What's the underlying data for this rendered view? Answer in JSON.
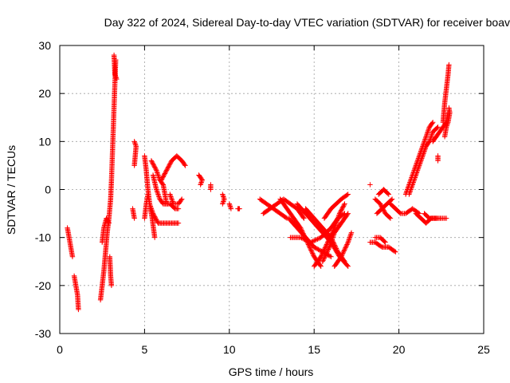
{
  "chart_data": {
    "type": "scatter",
    "title": "Day 322 of 2024, Sidereal Day-to-day VTEC variation (SDTVAR) for receiver boav",
    "xlabel": "GPS time / hours",
    "ylabel": "SDTVAR / TECUs",
    "xlim": [
      0,
      25
    ],
    "ylim": [
      -30,
      30
    ],
    "xticks": [
      0,
      5,
      10,
      15,
      20,
      25
    ],
    "yticks": [
      -30,
      -20,
      -10,
      0,
      10,
      20,
      30
    ],
    "grid": true,
    "marker": "+",
    "color": "#ff0000",
    "series": [
      {
        "name": "SDTVAR",
        "segments": [
          [
            [
              0.45,
              -8
            ],
            [
              0.55,
              -10
            ],
            [
              0.65,
              -12
            ],
            [
              0.75,
              -14
            ]
          ],
          [
            [
              0.85,
              -18
            ],
            [
              0.95,
              -20
            ],
            [
              1.05,
              -22
            ],
            [
              1.1,
              -25
            ]
          ],
          [
            [
              2.4,
              -23
            ],
            [
              2.5,
              -20
            ],
            [
              2.6,
              -17
            ],
            [
              2.7,
              -13
            ],
            [
              2.8,
              -9
            ],
            [
              2.9,
              -6
            ],
            [
              3.0,
              -2
            ],
            [
              3.05,
              2
            ],
            [
              3.1,
              7
            ],
            [
              3.15,
              12
            ],
            [
              3.2,
              17
            ],
            [
              3.25,
              22
            ],
            [
              3.3,
              27
            ]
          ],
          [
            [
              2.5,
              -11
            ],
            [
              2.6,
              -8
            ],
            [
              2.75,
              -6
            ],
            [
              2.9,
              -7
            ]
          ],
          [
            [
              2.95,
              -14
            ],
            [
              3.0,
              -18
            ],
            [
              3.05,
              -20
            ]
          ],
          [
            [
              3.2,
              28
            ],
            [
              3.25,
              24
            ],
            [
              3.35,
              23
            ]
          ],
          [
            [
              4.3,
              -4
            ],
            [
              4.4,
              -6
            ]
          ],
          [
            [
              4.4,
              10
            ],
            [
              4.5,
              9
            ],
            [
              4.4,
              5
            ]
          ],
          [
            [
              5.0,
              7
            ],
            [
              5.1,
              4
            ],
            [
              5.2,
              0
            ],
            [
              5.3,
              -3
            ],
            [
              5.45,
              -6
            ],
            [
              5.6,
              -10
            ]
          ],
          [
            [
              5.0,
              -6
            ],
            [
              5.1,
              -3
            ],
            [
              5.2,
              -1
            ],
            [
              5.3,
              -3
            ],
            [
              5.5,
              -5
            ],
            [
              5.8,
              -7
            ],
            [
              6.2,
              -7
            ],
            [
              6.6,
              -7
            ],
            [
              7.0,
              -7
            ]
          ],
          [
            [
              5.4,
              6
            ],
            [
              5.7,
              4
            ],
            [
              5.9,
              2
            ],
            [
              6.1,
              1
            ],
            [
              6.2,
              -1
            ],
            [
              6.3,
              -3
            ]
          ],
          [
            [
              5.5,
              3
            ],
            [
              5.7,
              0
            ],
            [
              5.9,
              -2
            ],
            [
              6.1,
              -3
            ],
            [
              6.5,
              -3
            ],
            [
              6.8,
              -4
            ],
            [
              7.0,
              -4
            ]
          ],
          [
            [
              6.0,
              2
            ],
            [
              6.3,
              4
            ],
            [
              6.6,
              6
            ],
            [
              6.9,
              7
            ],
            [
              7.2,
              6
            ],
            [
              7.4,
              5
            ]
          ],
          [
            [
              6.5,
              -1
            ],
            [
              6.7,
              -3
            ],
            [
              7.0,
              -3
            ],
            [
              7.2,
              -2
            ]
          ],
          [
            [
              8.2,
              3
            ],
            [
              8.4,
              2
            ],
            [
              8.3,
              1
            ]
          ],
          [
            [
              8.9,
              1
            ],
            [
              8.9,
              0
            ]
          ],
          [
            [
              9.6,
              -1
            ],
            [
              9.7,
              -2
            ],
            [
              9.6,
              -3
            ]
          ],
          [
            [
              10.0,
              -3
            ],
            [
              10.1,
              -4
            ]
          ],
          [
            [
              10.5,
              -4
            ],
            [
              10.6,
              -4
            ]
          ],
          [
            [
              11.8,
              -2
            ],
            [
              12.2,
              -3
            ],
            [
              12.6,
              -4
            ],
            [
              13.0,
              -5
            ],
            [
              13.4,
              -6
            ]
          ],
          [
            [
              12.0,
              -5
            ],
            [
              12.4,
              -4
            ],
            [
              12.8,
              -3
            ],
            [
              13.2,
              -2
            ],
            [
              13.6,
              -3
            ],
            [
              14.0,
              -4
            ],
            [
              14.4,
              -6
            ]
          ],
          [
            [
              13.0,
              -2
            ],
            [
              13.4,
              -4
            ],
            [
              13.8,
              -6
            ],
            [
              14.2,
              -8
            ],
            [
              14.6,
              -11
            ],
            [
              15.0,
              -14
            ],
            [
              15.4,
              -16
            ]
          ],
          [
            [
              13.5,
              -6
            ],
            [
              14.0,
              -8
            ],
            [
              14.5,
              -10
            ],
            [
              15.0,
              -12
            ],
            [
              15.5,
              -13
            ],
            [
              16.0,
              -14
            ]
          ],
          [
            [
              13.6,
              -10
            ],
            [
              14.2,
              -10
            ],
            [
              14.8,
              -11
            ],
            [
              15.4,
              -10
            ],
            [
              16.0,
              -8
            ],
            [
              16.4,
              -6
            ],
            [
              16.8,
              -5
            ]
          ],
          [
            [
              14.0,
              -3
            ],
            [
              14.5,
              -5
            ],
            [
              15.0,
              -7
            ],
            [
              15.5,
              -9
            ],
            [
              16.0,
              -11
            ],
            [
              16.5,
              -14
            ],
            [
              17.0,
              -16
            ]
          ],
          [
            [
              14.5,
              -4
            ],
            [
              15.0,
              -6
            ],
            [
              15.5,
              -8
            ],
            [
              16.0,
              -10
            ],
            [
              16.4,
              -13
            ],
            [
              16.8,
              -15
            ]
          ],
          [
            [
              15.0,
              -16
            ],
            [
              15.4,
              -14
            ],
            [
              15.8,
              -11
            ],
            [
              16.2,
              -8
            ],
            [
              16.5,
              -5
            ],
            [
              16.8,
              -3
            ]
          ],
          [
            [
              15.5,
              -15
            ],
            [
              15.9,
              -12
            ],
            [
              16.2,
              -9
            ],
            [
              16.6,
              -7
            ],
            [
              17.0,
              -5
            ]
          ],
          [
            [
              15.6,
              -6
            ],
            [
              16.0,
              -4
            ],
            [
              16.3,
              -3
            ],
            [
              16.6,
              -2
            ],
            [
              17.0,
              -1
            ]
          ],
          [
            [
              16.2,
              -16
            ],
            [
              16.6,
              -14
            ],
            [
              17.0,
              -11
            ],
            [
              17.2,
              -9
            ]
          ],
          [
            [
              18.3,
              1
            ]
          ],
          [
            [
              18.3,
              -11
            ],
            [
              18.6,
              -11
            ],
            [
              19.0,
              -12
            ],
            [
              19.4,
              -12
            ],
            [
              19.8,
              -13
            ]
          ],
          [
            [
              18.6,
              -10
            ],
            [
              18.9,
              -10
            ],
            [
              19.2,
              -11
            ]
          ],
          [
            [
              18.6,
              -2
            ],
            [
              18.9,
              -3
            ],
            [
              19.2,
              -5
            ],
            [
              19.5,
              -6
            ]
          ],
          [
            [
              18.7,
              -5
            ],
            [
              19.0,
              -4
            ],
            [
              19.3,
              -3
            ],
            [
              19.6,
              -2
            ]
          ],
          [
            [
              18.8,
              -1
            ],
            [
              19.1,
              0
            ],
            [
              19.4,
              -1
            ]
          ],
          [
            [
              19.5,
              -3
            ],
            [
              19.8,
              -4
            ],
            [
              20.1,
              -5
            ],
            [
              20.4,
              -5
            ],
            [
              20.8,
              -4
            ],
            [
              21.2,
              -5
            ]
          ],
          [
            [
              20.4,
              -1
            ],
            [
              20.6,
              1
            ],
            [
              20.8,
              3
            ],
            [
              21.0,
              5
            ],
            [
              21.2,
              7
            ],
            [
              21.4,
              9
            ],
            [
              21.6,
              11
            ],
            [
              21.8,
              13
            ],
            [
              22.0,
              14
            ]
          ],
          [
            [
              20.6,
              -1
            ],
            [
              20.8,
              1
            ],
            [
              21.0,
              3
            ],
            [
              21.2,
              5
            ],
            [
              21.4,
              7
            ],
            [
              21.6,
              9
            ],
            [
              21.8,
              10
            ],
            [
              22.0,
              12
            ],
            [
              22.3,
              13
            ]
          ],
          [
            [
              21.0,
              -5
            ],
            [
              21.3,
              -6
            ],
            [
              21.6,
              -7
            ],
            [
              21.9,
              -6
            ],
            [
              22.2,
              -6
            ]
          ],
          [
            [
              21.5,
              -5
            ],
            [
              21.8,
              -6
            ],
            [
              22.1,
              -6
            ],
            [
              22.5,
              -6
            ],
            [
              22.8,
              -6
            ]
          ],
          [
            [
              22.0,
              10
            ],
            [
              22.2,
              11
            ],
            [
              22.4,
              12
            ],
            [
              22.6,
              13
            ],
            [
              22.8,
              14
            ],
            [
              22.9,
              16
            ]
          ],
          [
            [
              22.3,
              7
            ],
            [
              22.3,
              6
            ]
          ],
          [
            [
              22.6,
              14
            ],
            [
              22.7,
              18
            ],
            [
              22.8,
              21
            ],
            [
              22.9,
              24
            ],
            [
              22.95,
              26
            ]
          ],
          [
            [
              22.7,
              11
            ],
            [
              22.8,
              13
            ],
            [
              22.9,
              14
            ],
            [
              23.0,
              16
            ],
            [
              22.95,
              17
            ]
          ]
        ]
      }
    ]
  }
}
